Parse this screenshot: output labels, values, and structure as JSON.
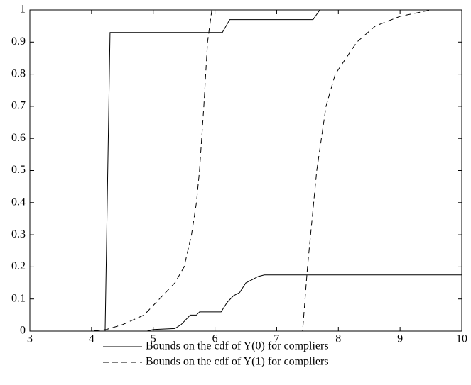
{
  "chart_data": {
    "type": "line",
    "xlim": [
      3,
      10
    ],
    "xticks": [
      3,
      4,
      5,
      6,
      7,
      8,
      9,
      10
    ],
    "ylim": [
      0,
      1
    ],
    "yticks": [
      0,
      0.1,
      0.2,
      0.3,
      0.4,
      0.5,
      0.6,
      0.7,
      0.8,
      0.9,
      1
    ],
    "series": [
      {
        "name": "Bounds on the cdf of Y(0) for compliers",
        "color": "#000000",
        "dash": "solid",
        "lines": [
          {
            "x": [
              3,
              4.22,
              4.3,
              6.12,
              6.24,
              7.59,
              7.7,
              10
            ],
            "values": [
              0,
              0,
              0.93,
              0.93,
              0.97,
              0.97,
              1,
              1
            ]
          },
          {
            "x": [
              3,
              4.9,
              5.0,
              5.35,
              5.45,
              5.6,
              5.7,
              5.75,
              6.1,
              6.2,
              6.3,
              6.4,
              6.5,
              6.6,
              6.7,
              6.8,
              10
            ],
            "values": [
              0,
              0,
              0.005,
              0.008,
              0.02,
              0.05,
              0.05,
              0.06,
              0.06,
              0.09,
              0.11,
              0.12,
              0.15,
              0.16,
              0.17,
              0.175,
              0.175
            ]
          }
        ]
      },
      {
        "name": "Bounds on the cdf of Y(1) for compliers",
        "color": "#000000",
        "dash": "dashed",
        "lines": [
          {
            "x": [
              3,
              4.0,
              4.24,
              4.5,
              4.85,
              5.1,
              5.35,
              5.5,
              5.62,
              5.7,
              5.75,
              5.82,
              5.88,
              5.95,
              10
            ],
            "values": [
              0,
              0,
              0.005,
              0.02,
              0.05,
              0.1,
              0.15,
              0.2,
              0.3,
              0.4,
              0.5,
              0.7,
              0.9,
              1,
              1
            ]
          },
          {
            "x": [
              3,
              7.42,
              7.46,
              7.5,
              7.55,
              7.65,
              7.8,
              7.95,
              8.3,
              8.6,
              9.0,
              9.5,
              10
            ],
            "values": [
              0,
              0,
              0.1,
              0.2,
              0.3,
              0.5,
              0.7,
              0.8,
              0.9,
              0.95,
              0.98,
              1,
              1
            ]
          }
        ]
      }
    ]
  }
}
